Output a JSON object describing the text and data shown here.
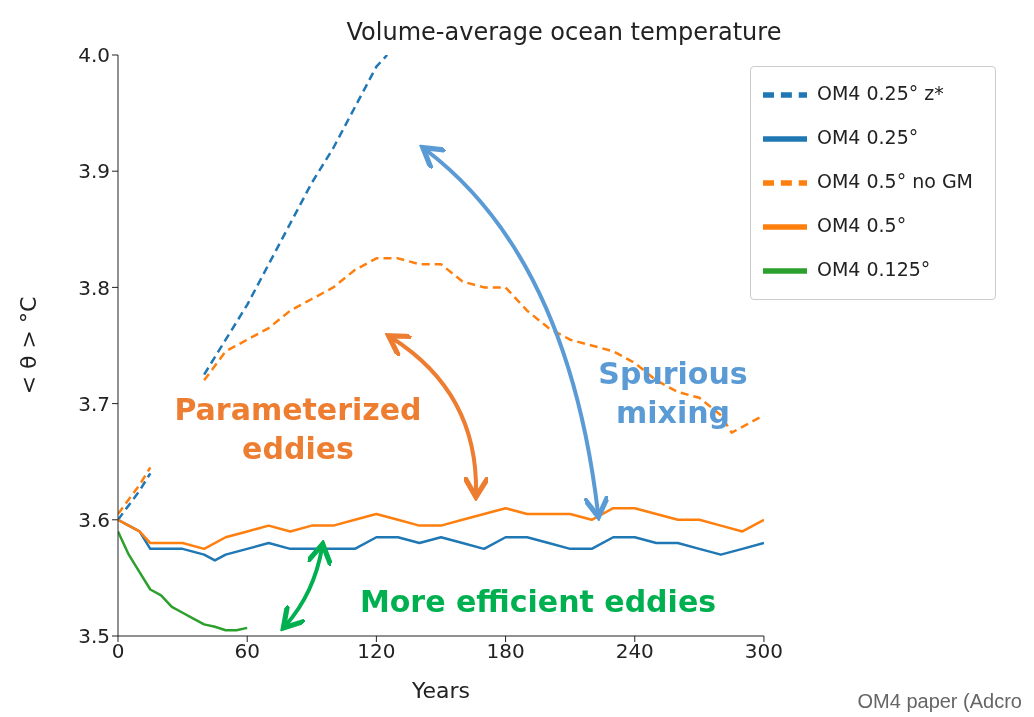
{
  "chart_data": {
    "type": "line",
    "title": "Volume-average ocean temperature",
    "xlabel": "Years",
    "ylabel": "< θ >  °C",
    "xlim": [
      0,
      300
    ],
    "xticks": [
      0,
      60,
      120,
      180,
      240,
      300
    ],
    "ylim": [
      3.5,
      4.0
    ],
    "yticks": [
      3.5,
      3.6,
      3.7,
      3.8,
      3.9,
      {
        "value": 4.0,
        "label": "4.0"
      }
    ],
    "grid": false,
    "legend": "top right",
    "annotations": [
      "Parameterized eddies",
      "Spurious mixing",
      "More efficient eddies",
      "OM4 paper (Adcro"
    ],
    "series": [
      {
        "name": "OM4 0.25° z*",
        "color": "#1f77b4",
        "line_style": "dashed",
        "x": [
          0,
          10,
          15,
          20,
          30,
          40,
          50,
          60,
          70,
          80,
          90,
          100,
          110,
          120,
          125
        ],
        "values": [
          3.6,
          3.625,
          3.64,
          null,
          null,
          3.725,
          3.755,
          3.785,
          3.82,
          3.855,
          3.89,
          3.92,
          3.955,
          3.99,
          4.0
        ]
      },
      {
        "name": "OM4 0.25°",
        "color": "#1f77b4",
        "line_style": "solid",
        "x": [
          0,
          10,
          15,
          20,
          30,
          40,
          45,
          50,
          60,
          70,
          80,
          90,
          100,
          110,
          120,
          130,
          140,
          150,
          160,
          170,
          180,
          190,
          200,
          210,
          220,
          230,
          240,
          250,
          260,
          270,
          280,
          290,
          300
        ],
        "values": [
          3.6,
          3.59,
          3.575,
          3.575,
          3.575,
          3.57,
          3.565,
          3.57,
          3.575,
          3.58,
          3.575,
          3.575,
          3.575,
          3.575,
          3.585,
          3.585,
          3.58,
          3.585,
          3.58,
          3.575,
          3.585,
          3.585,
          3.58,
          3.575,
          3.575,
          3.585,
          3.585,
          3.58,
          3.58,
          3.575,
          3.57,
          3.575,
          3.58
        ]
      },
      {
        "name": "OM4 0.5° no GM",
        "color": "#ff7f0e",
        "line_style": "dashed",
        "x": [
          0,
          10,
          15,
          20,
          30,
          40,
          50,
          60,
          70,
          80,
          90,
          100,
          110,
          120,
          130,
          140,
          150,
          160,
          170,
          180,
          190,
          200,
          210,
          220,
          230,
          240,
          250,
          260,
          270,
          280,
          285,
          290,
          300
        ],
        "values": [
          3.605,
          3.63,
          3.645,
          null,
          null,
          3.72,
          3.745,
          3.755,
          3.765,
          3.78,
          3.79,
          3.8,
          3.815,
          3.825,
          3.825,
          3.82,
          3.82,
          3.805,
          3.8,
          3.8,
          3.78,
          3.765,
          3.755,
          3.75,
          3.745,
          3.735,
          3.72,
          3.71,
          3.705,
          3.69,
          3.675,
          3.68,
          3.69
        ]
      },
      {
        "name": "OM4 0.5°",
        "color": "#ff7f0e",
        "line_style": "solid",
        "x": [
          0,
          5,
          10,
          15,
          20,
          30,
          40,
          50,
          60,
          70,
          80,
          90,
          100,
          110,
          120,
          130,
          140,
          150,
          160,
          170,
          180,
          190,
          200,
          210,
          220,
          230,
          240,
          250,
          260,
          270,
          280,
          290,
          300
        ],
        "values": [
          3.6,
          3.595,
          3.59,
          3.58,
          3.58,
          3.58,
          3.575,
          3.585,
          3.59,
          3.595,
          3.59,
          3.595,
          3.595,
          3.6,
          3.605,
          3.6,
          3.595,
          3.595,
          3.6,
          3.605,
          3.61,
          3.605,
          3.605,
          3.605,
          3.6,
          3.61,
          3.61,
          3.605,
          3.6,
          3.6,
          3.595,
          3.59,
          3.6
        ]
      },
      {
        "name": "OM4 0.125°",
        "color": "#2ca02c",
        "line_style": "solid",
        "x": [
          0,
          5,
          10,
          15,
          20,
          25,
          30,
          35,
          40,
          45,
          50,
          55,
          60
        ],
        "values": [
          3.59,
          3.57,
          3.555,
          3.54,
          3.535,
          3.525,
          3.52,
          3.515,
          3.51,
          3.508,
          3.505,
          3.505,
          3.507
        ]
      }
    ]
  }
}
